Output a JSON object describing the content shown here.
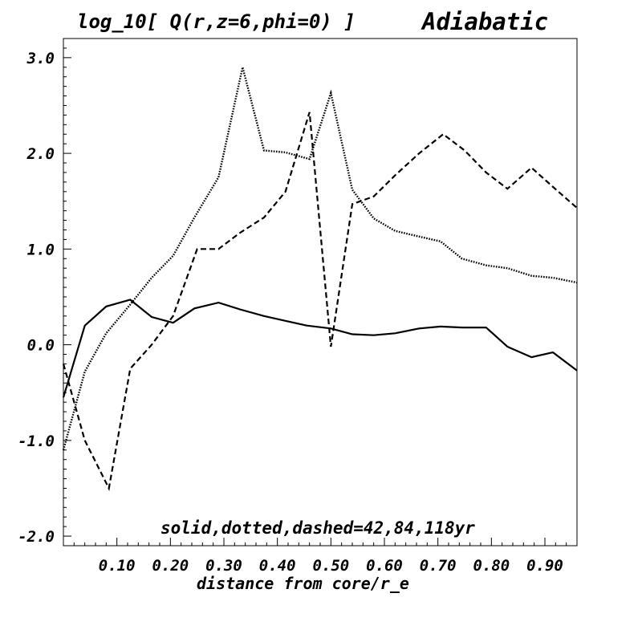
{
  "chart_data": {
    "type": "line",
    "title": "log_10[ Q(r,z=6,phi=0) ]",
    "subtitle": "Adiabatic",
    "xlabel": "distance from core/r_e",
    "ylabel": "",
    "annotation": "solid,dotted,dashed=42,84,118yr",
    "xlim": [
      0.0,
      0.96
    ],
    "ylim": [
      -2.1,
      3.2
    ],
    "xticks": [
      {
        "value": 0.1,
        "label": "0.10"
      },
      {
        "value": 0.2,
        "label": "0.20"
      },
      {
        "value": 0.3,
        "label": "0.30"
      },
      {
        "value": 0.4,
        "label": "0.40"
      },
      {
        "value": 0.5,
        "label": "0.50"
      },
      {
        "value": 0.6,
        "label": "0.60"
      },
      {
        "value": 0.7,
        "label": "0.70"
      },
      {
        "value": 0.8,
        "label": "0.80"
      },
      {
        "value": 0.9,
        "label": "0.90"
      }
    ],
    "yticks": [
      {
        "value": 3.0,
        "label": "3.0"
      },
      {
        "value": 2.0,
        "label": "2.0"
      },
      {
        "value": 1.0,
        "label": "1.0"
      },
      {
        "value": 0.0,
        "label": "0.0"
      },
      {
        "value": -1.0,
        "label": "-1.0"
      },
      {
        "value": -2.0,
        "label": "-2.0"
      }
    ],
    "grid": false,
    "series": [
      {
        "style": "solid",
        "x": [
          0.0,
          0.04,
          0.08,
          0.125,
          0.165,
          0.205,
          0.245,
          0.29,
          0.33,
          0.375,
          0.415,
          0.455,
          0.5,
          0.54,
          0.58,
          0.62,
          0.665,
          0.705,
          0.745,
          0.79,
          0.83,
          0.875,
          0.915,
          0.96
        ],
        "y": [
          -0.55,
          0.2,
          0.4,
          0.47,
          0.29,
          0.23,
          0.38,
          0.44,
          0.37,
          0.3,
          0.25,
          0.2,
          0.17,
          0.11,
          0.1,
          0.12,
          0.17,
          0.19,
          0.18,
          0.18,
          -0.02,
          -0.13,
          -0.08,
          -0.27
        ]
      },
      {
        "style": "dotted",
        "x": [
          0.0,
          0.04,
          0.08,
          0.125,
          0.165,
          0.205,
          0.245,
          0.29,
          0.335,
          0.375,
          0.415,
          0.46,
          0.5,
          0.54,
          0.58,
          0.62,
          0.665,
          0.705,
          0.745,
          0.79,
          0.83,
          0.875,
          0.915,
          0.96
        ],
        "y": [
          -1.1,
          -0.28,
          0.12,
          0.42,
          0.7,
          0.93,
          1.33,
          1.75,
          2.9,
          2.03,
          2.01,
          1.94,
          2.63,
          1.62,
          1.32,
          1.19,
          1.13,
          1.08,
          0.9,
          0.83,
          0.8,
          0.72,
          0.7,
          0.65
        ]
      },
      {
        "style": "dashed",
        "x": [
          0.0,
          0.04,
          0.085,
          0.125,
          0.165,
          0.205,
          0.25,
          0.29,
          0.33,
          0.375,
          0.415,
          0.46,
          0.5,
          0.54,
          0.58,
          0.62,
          0.665,
          0.71,
          0.75,
          0.79,
          0.83,
          0.875,
          0.915,
          0.96
        ],
        "y": [
          -0.2,
          -1.0,
          -1.5,
          -0.25,
          0.0,
          0.3,
          1.0,
          1.0,
          1.17,
          1.33,
          1.6,
          2.43,
          -0.02,
          1.47,
          1.55,
          1.77,
          2.0,
          2.2,
          2.03,
          1.8,
          1.63,
          1.85,
          1.65,
          1.43
        ]
      }
    ]
  }
}
